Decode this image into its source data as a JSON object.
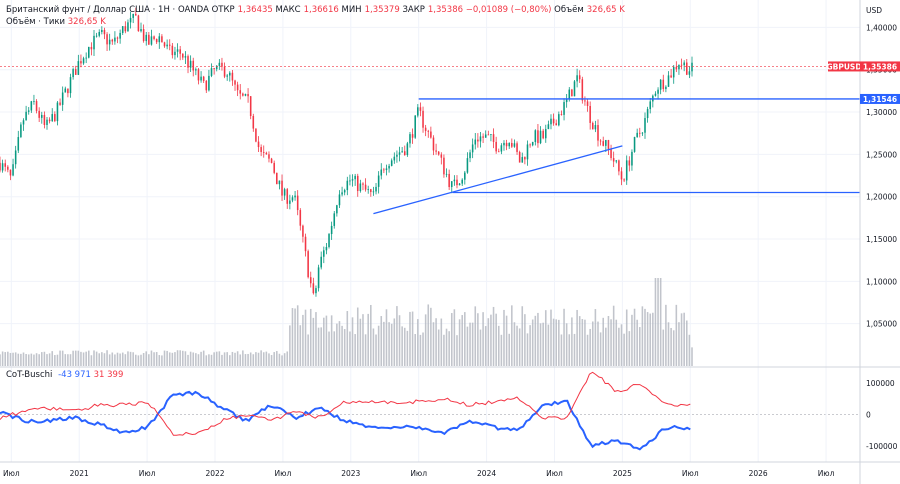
{
  "legend": {
    "title": "Британский фунт / Доллар США · 1Н · OANDA",
    "open_label": "ОТКР",
    "open": "1,36435",
    "high_label": "МАКС",
    "high": "1,36616",
    "low_label": "МИН",
    "low": "1,35379",
    "close_label": "ЗАКР",
    "close": "1,35386",
    "change": "−0,01089 (−0,80%)",
    "volume_label": "Объём",
    "volume": "326,65 K",
    "volume_series_label": "Объём · Тики",
    "volume_series_value": "326,65 K"
  },
  "indicator": {
    "name": "CoT-Buschi",
    "value1": "-43 971",
    "value2": "31 399",
    "ticks": [
      "100000",
      "0",
      "-100000"
    ]
  },
  "price_axis": {
    "currency": "USD",
    "ticks": [
      "1,40000",
      "1,35000",
      "1,30000",
      "1,25000",
      "1,20000",
      "1,15000",
      "1,10000",
      "1,05000"
    ]
  },
  "price_tags": {
    "symbol": "GBPUSD",
    "last": "1,35386",
    "level": "1,31546"
  },
  "time_axis": [
    "Июл",
    "2021",
    "Июл",
    "2022",
    "Июл",
    "2023",
    "Июл",
    "2024",
    "Июл",
    "2025",
    "Июл",
    "2026",
    "Июл"
  ],
  "colors": {
    "up": "#089981",
    "down": "#f23645",
    "line": "#2962ff",
    "cot_red": "#f23645",
    "cot_blue": "#2962ff",
    "volume": "#b2b5be"
  },
  "chart_data": [
    {
      "type": "candlestick",
      "symbol": "GBPUSD",
      "timeframe": "1W",
      "ylim": [
        1.0,
        1.43
      ],
      "x_range": [
        "2020-06",
        "2026-10"
      ],
      "points": [
        [
          "2020-06",
          1.24
        ],
        [
          "2020-07",
          1.22
        ],
        [
          "2020-08",
          1.29
        ],
        [
          "2020-09",
          1.31
        ],
        [
          "2020-10",
          1.28
        ],
        [
          "2020-11",
          1.3
        ],
        [
          "2020-12",
          1.33
        ],
        [
          "2021-01",
          1.36
        ],
        [
          "2021-02",
          1.38
        ],
        [
          "2021-03",
          1.39
        ],
        [
          "2021-04",
          1.38
        ],
        [
          "2021-05",
          1.4
        ],
        [
          "2021-06",
          1.41
        ],
        [
          "2021-07",
          1.38
        ],
        [
          "2021-08",
          1.39
        ],
        [
          "2021-09",
          1.37
        ],
        [
          "2021-10",
          1.37
        ],
        [
          "2021-11",
          1.35
        ],
        [
          "2021-12",
          1.33
        ],
        [
          "2022-01",
          1.35
        ],
        [
          "2022-02",
          1.35
        ],
        [
          "2022-03",
          1.32
        ],
        [
          "2022-04",
          1.31
        ],
        [
          "2022-05",
          1.25
        ],
        [
          "2022-06",
          1.24
        ],
        [
          "2022-07",
          1.2
        ],
        [
          "2022-08",
          1.2
        ],
        [
          "2022-09",
          1.13
        ],
        [
          "2022-09-26",
          1.07
        ],
        [
          "2022-10",
          1.11
        ],
        [
          "2022-11",
          1.15
        ],
        [
          "2022-12",
          1.21
        ],
        [
          "2023-01",
          1.22
        ],
        [
          "2023-02",
          1.21
        ],
        [
          "2023-03",
          1.2
        ],
        [
          "2023-04",
          1.24
        ],
        [
          "2023-05",
          1.25
        ],
        [
          "2023-06",
          1.26
        ],
        [
          "2023-07",
          1.3
        ],
        [
          "2023-08",
          1.27
        ],
        [
          "2023-09",
          1.24
        ],
        [
          "2023-10",
          1.21
        ],
        [
          "2023-11",
          1.23
        ],
        [
          "2023-12",
          1.27
        ],
        [
          "2024-01",
          1.27
        ],
        [
          "2024-02",
          1.26
        ],
        [
          "2024-03",
          1.27
        ],
        [
          "2024-04",
          1.24
        ],
        [
          "2024-05",
          1.27
        ],
        [
          "2024-06",
          1.27
        ],
        [
          "2024-07",
          1.29
        ],
        [
          "2024-08",
          1.31
        ],
        [
          "2024-09",
          1.34
        ],
        [
          "2024-10",
          1.3
        ],
        [
          "2024-11",
          1.27
        ],
        [
          "2024-12",
          1.25
        ],
        [
          "2025-01",
          1.22
        ],
        [
          "2025-02",
          1.26
        ],
        [
          "2025-03",
          1.29
        ],
        [
          "2025-04",
          1.33
        ],
        [
          "2025-05",
          1.34
        ],
        [
          "2025-06",
          1.36
        ],
        [
          "2025-07",
          1.35
        ]
      ],
      "lines": [
        {
          "from": [
            "2023-03",
            1.18
          ],
          "to": [
            "2025-01",
            1.26
          ]
        },
        {
          "from": [
            "2023-07",
            1.31546
          ],
          "to": [
            "2026-10",
            1.31546
          ]
        },
        {
          "from": [
            "2023-10",
            1.205
          ],
          "to": [
            "2026-10",
            1.205
          ]
        }
      ],
      "last_price": 1.35386
    },
    {
      "type": "line",
      "name": "CoT-Buschi",
      "ylim": [
        -150000,
        150000
      ],
      "series": [
        {
          "color": "#2962ff",
          "values": [
            10000,
            -20000,
            -20000,
            -10000,
            -30000,
            -60000,
            -40000,
            60000,
            70000,
            20000,
            -20000,
            30000,
            -10000,
            20000,
            -20000,
            -40000,
            -40000,
            -40000,
            -60000,
            -20000,
            -40000,
            -50000,
            30000,
            40000,
            -100000,
            -80000,
            -110000,
            -40000,
            -43971
          ]
        },
        {
          "color": "#f23645",
          "values": [
            -10000,
            10000,
            20000,
            10000,
            30000,
            30000,
            40000,
            -60000,
            -60000,
            -20000,
            0,
            -20000,
            10000,
            -10000,
            40000,
            40000,
            40000,
            40000,
            50000,
            30000,
            40000,
            50000,
            -10000,
            -10000,
            140000,
            70000,
            100000,
            30000,
            31399
          ]
        }
      ]
    }
  ]
}
